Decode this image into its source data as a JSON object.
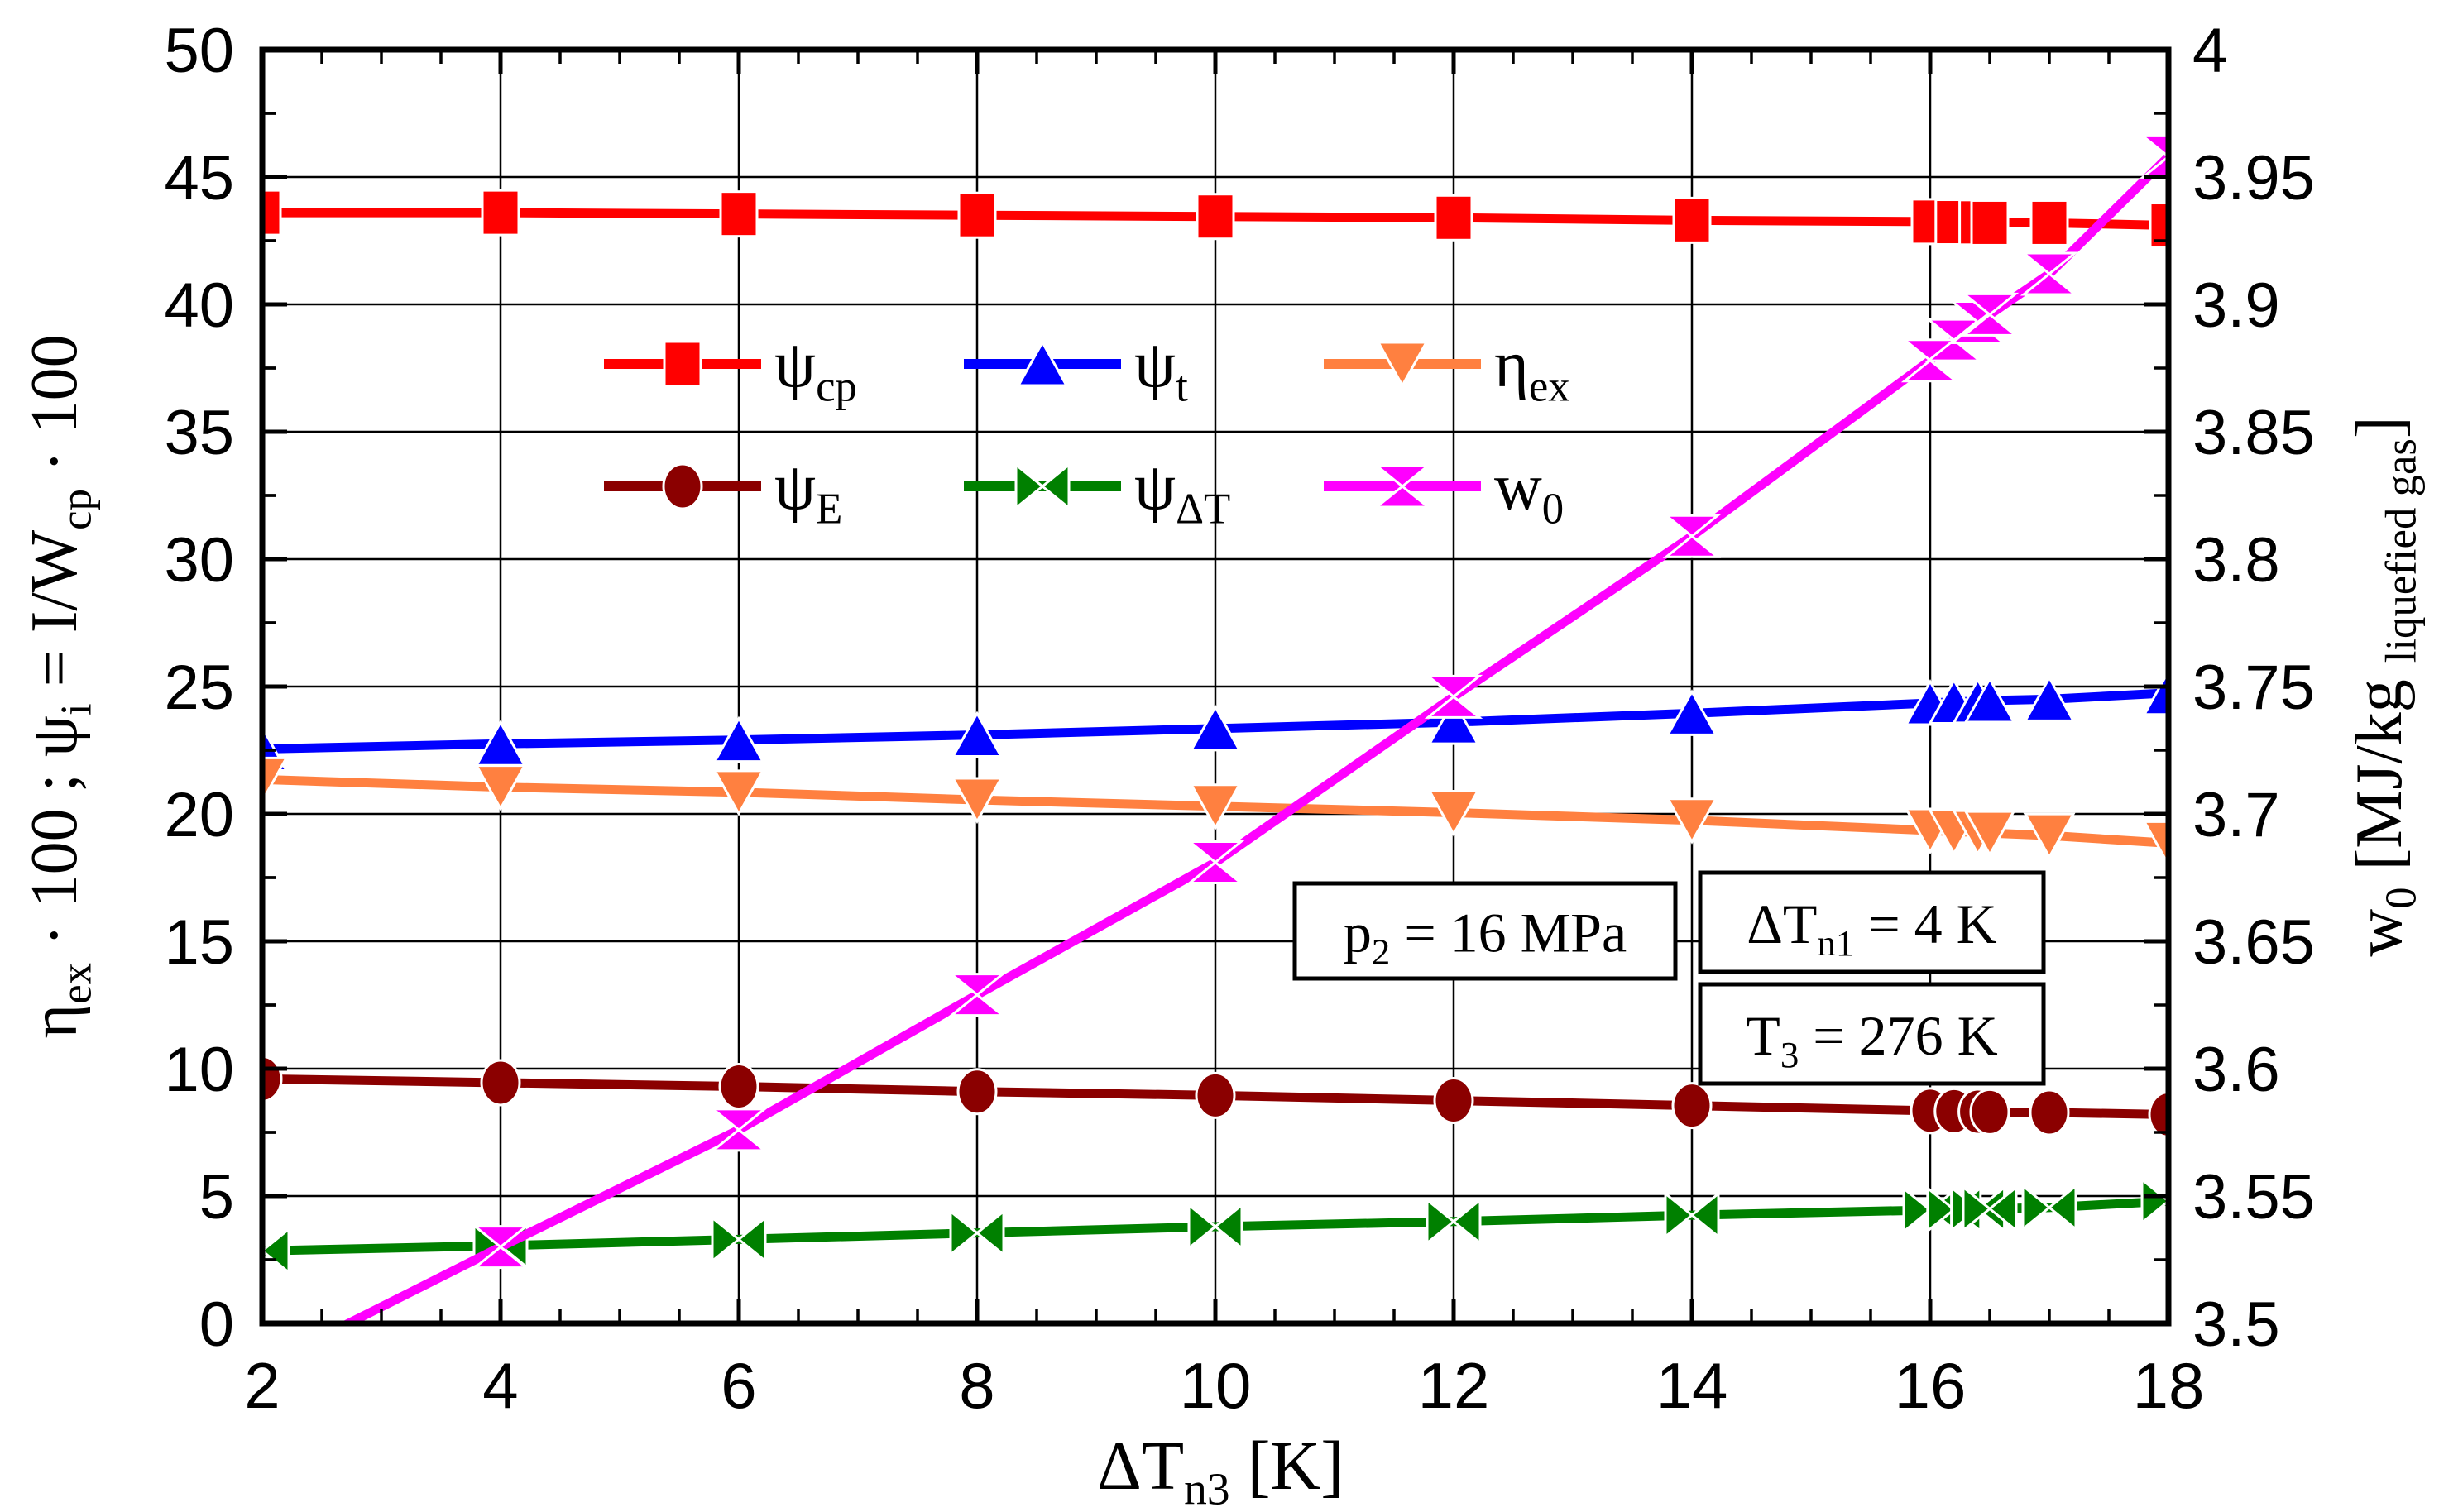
{
  "chart_data": {
    "type": "line",
    "background": "#ffffff",
    "frame_color": "#000000",
    "grid_color": "#000000",
    "grid": true,
    "x": [
      2,
      4,
      6,
      8,
      10,
      12,
      14,
      16,
      16.2,
      16.4,
      16.5,
      17,
      18
    ],
    "x_axis": {
      "min": 2,
      "max": 18,
      "major_step": 2,
      "minor_step": 0.5,
      "tick_labels": [
        "2",
        "4",
        "6",
        "8",
        "10",
        "12",
        "14",
        "16",
        "18"
      ],
      "title_rich": [
        {
          "t": "ΔT"
        },
        {
          "t": "n3",
          "sub": true
        },
        {
          "t": " [K]"
        }
      ]
    },
    "left_axis": {
      "min": 0,
      "max": 50,
      "major_step": 5,
      "minor_step": 2.5,
      "tick_labels": [
        "0",
        "5",
        "10",
        "15",
        "20",
        "25",
        "30",
        "35",
        "40",
        "45",
        "50"
      ],
      "title_rich": [
        {
          "t": "η"
        },
        {
          "t": "ex",
          "sub": true
        },
        {
          "t": " · 100 ;  ψ"
        },
        {
          "t": "i",
          "sub": true
        },
        {
          "t": " =  I/W"
        },
        {
          "t": "cp",
          "sub": true
        },
        {
          "t": " · 100"
        }
      ]
    },
    "right_axis": {
      "min": 3.5,
      "max": 4.0,
      "major_step": 0.05,
      "tick_labels": [
        "3.5",
        "3.55",
        "3.6",
        "3.65",
        "3.7",
        "3.75",
        "3.8",
        "3.85",
        "3.9",
        "3.95",
        "4"
      ],
      "title_rich": [
        {
          "t": "w"
        },
        {
          "t": "0",
          "sub": true
        },
        {
          "t": " [MJ/kg "
        },
        {
          "t": "liquefied gas",
          "sub": true
        },
        {
          "t": "]"
        }
      ]
    },
    "series": [
      {
        "name": "psi_cp",
        "legend_rich": [
          {
            "t": "ψ"
          },
          {
            "t": "cp",
            "sub": true
          }
        ],
        "color": "#ff0000",
        "marker": "square",
        "axis": "left",
        "values": [
          43.6,
          43.6,
          43.55,
          43.5,
          43.45,
          43.4,
          43.3,
          43.25,
          43.23,
          43.22,
          43.2,
          43.2,
          43.1
        ]
      },
      {
        "name": "psi_t",
        "legend_rich": [
          {
            "t": "ψ"
          },
          {
            "t": "t",
            "sub": true
          }
        ],
        "color": "#0000ff",
        "marker": "triangle-up",
        "axis": "left",
        "values": [
          22.55,
          22.75,
          22.9,
          23.1,
          23.35,
          23.6,
          23.95,
          24.35,
          24.4,
          24.42,
          24.45,
          24.5,
          24.75
        ]
      },
      {
        "name": "eta_ex",
        "legend_rich": [
          {
            "t": "η"
          },
          {
            "t": "ex",
            "sub": true
          }
        ],
        "color": "#ff8040",
        "marker": "triangle-down",
        "axis": "left",
        "values": [
          21.35,
          21.05,
          20.85,
          20.55,
          20.3,
          20.05,
          19.75,
          19.35,
          19.3,
          19.28,
          19.25,
          19.15,
          18.85
        ]
      },
      {
        "name": "psi_E",
        "legend_rich": [
          {
            "t": "ψ"
          },
          {
            "t": "E",
            "sub": true
          }
        ],
        "color": "#8b0000",
        "marker": "circle",
        "axis": "left",
        "values": [
          9.6,
          9.45,
          9.3,
          9.1,
          8.95,
          8.75,
          8.55,
          8.35,
          8.33,
          8.31,
          8.3,
          8.28,
          8.2
        ]
      },
      {
        "name": "psi_dT",
        "legend_rich": [
          {
            "t": "ψ"
          },
          {
            "t": "ΔT",
            "sub": true
          }
        ],
        "color": "#008000",
        "marker": "bowtie-h",
        "axis": "left",
        "values": [
          2.85,
          3.05,
          3.3,
          3.55,
          3.8,
          4.0,
          4.25,
          4.45,
          4.47,
          4.49,
          4.5,
          4.55,
          4.8
        ]
      },
      {
        "name": "w0",
        "legend_rich": [
          {
            "t": "w"
          },
          {
            "t": "0",
            "sub": true
          }
        ],
        "color": "#ff00ff",
        "marker": "bowtie-v",
        "axis": "right",
        "values": [
          3.483,
          3.53,
          3.576,
          3.629,
          3.681,
          3.746,
          3.809,
          3.878,
          3.886,
          3.893,
          3.896,
          3.912,
          3.958
        ]
      }
    ],
    "annotations": [
      {
        "name": "p2",
        "rich": [
          {
            "t": "p"
          },
          {
            "t": "2",
            "sub": true
          },
          {
            "t": " = 16 MPa"
          }
        ]
      },
      {
        "name": "dTn1",
        "rich": [
          {
            "t": "ΔT"
          },
          {
            "t": "n1",
            "sub": true
          },
          {
            "t": " = 4 K"
          }
        ]
      },
      {
        "name": "T3",
        "rich": [
          {
            "t": "T"
          },
          {
            "t": "3",
            "sub": true
          },
          {
            "t": " = 276 K"
          }
        ]
      }
    ],
    "legend": {
      "position": "inside-upper-middle",
      "rows": 2,
      "cols": 3,
      "order": [
        "psi_cp",
        "psi_t",
        "eta_ex",
        "psi_E",
        "psi_dT",
        "w0"
      ]
    }
  }
}
